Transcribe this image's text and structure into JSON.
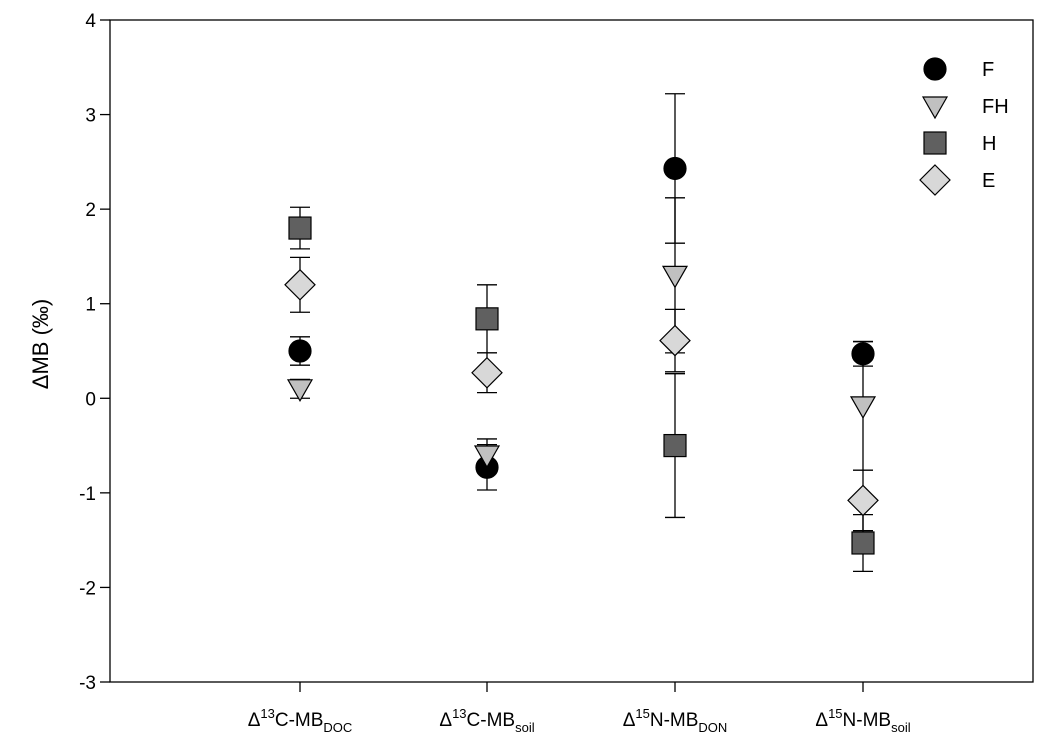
{
  "chart_data": {
    "type": "scatter",
    "title": "",
    "ylabel": "ΔMB (‰)",
    "xlabel": "",
    "ylim": [
      -3,
      4
    ],
    "yticks": [
      "4",
      "3",
      "2",
      "1",
      "0",
      "-1",
      "-2",
      "-3"
    ],
    "categories": [
      {
        "prefix": "Δ",
        "sup": "13",
        "main": "C-MB",
        "sub": "DOC"
      },
      {
        "prefix": "Δ",
        "sup": "13",
        "main": "C-MB",
        "sub": "soil"
      },
      {
        "prefix": "Δ",
        "sup": "15",
        "main": "N-MB",
        "sub": "DON"
      },
      {
        "prefix": "Δ",
        "sup": "15",
        "main": "N-MB",
        "sub": "soil"
      }
    ],
    "legend_position": "top-right",
    "grid": false,
    "series": [
      {
        "name": "F",
        "marker": "circle",
        "color": "#000000",
        "values": [
          0.5,
          -0.73,
          2.43,
          0.47
        ],
        "errors": [
          0.15,
          0.24,
          0.79,
          0.13
        ]
      },
      {
        "name": "FH",
        "marker": "triangle-down",
        "color": "#c0c0c0",
        "values": [
          0.1,
          -0.6,
          1.3,
          -0.08
        ],
        "errors": [
          0.1,
          0.17,
          0.82,
          0.68
        ]
      },
      {
        "name": "H",
        "marker": "square",
        "color": "#606060",
        "values": [
          1.8,
          0.84,
          -0.5,
          -1.53
        ],
        "errors": [
          0.22,
          0.36,
          0.76,
          0.3
        ]
      },
      {
        "name": "E",
        "marker": "diamond",
        "color": "#d8d8d8",
        "values": [
          1.2,
          0.27,
          0.61,
          -1.08
        ],
        "errors": [
          0.29,
          0.21,
          0.33,
          0.32
        ]
      }
    ]
  }
}
